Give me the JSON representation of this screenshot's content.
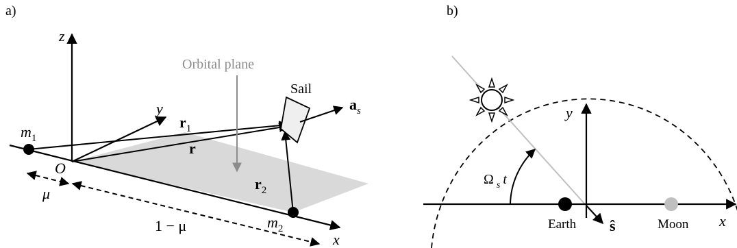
{
  "panel_a": {
    "tag": "a)",
    "z_label": "z",
    "y_label": "y",
    "x_label": "x",
    "origin_label": "O",
    "orbital_plane_label": "Orbital plane",
    "sail_label": "Sail",
    "as_main": "a",
    "as_sub": "s",
    "r_label": "r",
    "r1_main": "r",
    "r1_sub": "1",
    "r2_main": "r",
    "r2_sub": "2",
    "m1_main": "m",
    "m1_sub": "1",
    "m2_main": "m",
    "m2_sub": "2",
    "mu_label": "μ",
    "one_minus_mu_label": "1 − μ"
  },
  "panel_b": {
    "tag": "b)",
    "y_label": "y",
    "x_label": "x",
    "earth_label": "Earth",
    "moon_label": "Moon",
    "s_hat_label": "ŝ",
    "omega_main": "Ω",
    "omega_sub": "s",
    "omega_t": "t"
  },
  "colors": {
    "plane_fill": "#d9d9d9",
    "plane_label": "#8c8c8c",
    "moon": "#bfbfbf",
    "sun_line": "#c0c0c0"
  }
}
